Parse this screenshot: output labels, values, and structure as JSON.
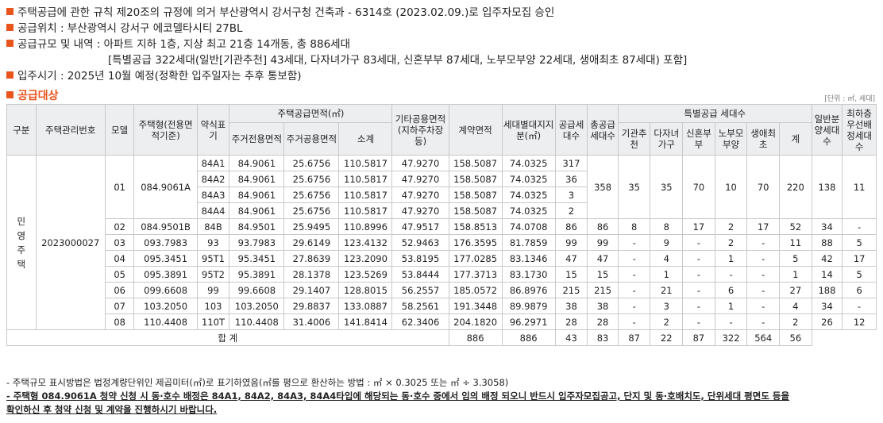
{
  "info": {
    "approval": "주택공급에 관한 규칙 제20조의 규정에 의거 부산광역시 강서구청 건축과 - 6314호 (2023.02.09.)로 입주자모집 승인",
    "location": "공급위치 : 부산광역시 강서구 에코델타시티 27BL",
    "scale": "공급규모 및 내역 : 아파트 지하 1층, 지상 최고 21층 14개동, 총 886세대",
    "scale_detail": "[특별공급 322세대(일반[기관추천] 43세대, 다자녀가구 83세대, 신혼부부 87세대, 노부모부양 22세대, 생애최초 87세대) 포함]",
    "move_in": "입주시기 : 2025년 10월 예정(정확한 입주일자는 추후 통보함)"
  },
  "section_title": "공급대상",
  "unit_note": "[단위 : ㎡, 세대]",
  "headers": {
    "gubun": "구분",
    "manage_no": "주택관리번호",
    "model": "모델",
    "housing_type": "주택형(전용면적기준)",
    "abbr": "약식표기",
    "supply_area": "주택공급면적(㎡)",
    "exclusive": "주거전용면적",
    "common": "주거공용면적",
    "subtotal": "소계",
    "other_common": "기타공용면적(지하주차장등)",
    "contract_area": "계약면적",
    "land": "세대별대지지분(㎡)",
    "supply_units": "공급세대수",
    "total_units": "총공급세대수",
    "special": "특별공급 세대수",
    "org": "기관추천",
    "multi_child": "다자녀가구",
    "newlywed": "신혼부부",
    "elderly": "노부모부양",
    "first_time": "생애최초",
    "sum": "계",
    "general": "일반분양세대수",
    "priority": "최하층우선배정세대수"
  },
  "gubun_value": [
    "민",
    "영",
    "주",
    "택"
  ],
  "manage_no_value": "2023000027",
  "group01": {
    "model": "01",
    "housing_type": "084.9061A",
    "total": "358",
    "org": "35",
    "multi_child": "35",
    "newlywed": "70",
    "elderly": "10",
    "first_time": "70",
    "sum": "220",
    "general": "138",
    "priority": "11",
    "subs": [
      {
        "abbr": "84A1",
        "exclusive": "84.9061",
        "common": "25.6756",
        "subtotal": "110.5817",
        "other": "47.9270",
        "contract": "158.5087",
        "land": "74.0325",
        "supply": "317"
      },
      {
        "abbr": "84A2",
        "exclusive": "84.9061",
        "common": "25.6756",
        "subtotal": "110.5817",
        "other": "47.9270",
        "contract": "158.5087",
        "land": "74.0325",
        "supply": "36"
      },
      {
        "abbr": "84A3",
        "exclusive": "84.9061",
        "common": "25.6756",
        "subtotal": "110.5817",
        "other": "47.9270",
        "contract": "158.5087",
        "land": "74.0325",
        "supply": "3"
      },
      {
        "abbr": "84A4",
        "exclusive": "84.9061",
        "common": "25.6756",
        "subtotal": "110.5817",
        "other": "47.9270",
        "contract": "158.5087",
        "land": "74.0325",
        "supply": "2"
      }
    ]
  },
  "rows": [
    {
      "model": "02",
      "type": "084.9501B",
      "abbr": "84B",
      "exclusive": "84.9501",
      "common": "25.9495",
      "subtotal": "110.8996",
      "other": "47.9517",
      "contract": "158.8513",
      "land": "74.0708",
      "supply": "86",
      "total": "86",
      "org": "8",
      "multi": "8",
      "newly": "17",
      "elder": "2",
      "first": "17",
      "sum": "52",
      "general": "34",
      "priority": "-"
    },
    {
      "model": "03",
      "type": "093.7983",
      "abbr": "93",
      "exclusive": "93.7983",
      "common": "29.6149",
      "subtotal": "123.4132",
      "other": "52.9463",
      "contract": "176.3595",
      "land": "81.7859",
      "supply": "99",
      "total": "99",
      "org": "-",
      "multi": "9",
      "newly": "-",
      "elder": "2",
      "first": "-",
      "sum": "11",
      "general": "88",
      "priority": "5"
    },
    {
      "model": "04",
      "type": "095.3451",
      "abbr": "95T1",
      "exclusive": "95.3451",
      "common": "27.8639",
      "subtotal": "123.2090",
      "other": "53.8195",
      "contract": "177.0285",
      "land": "83.1346",
      "supply": "47",
      "total": "47",
      "org": "-",
      "multi": "4",
      "newly": "-",
      "elder": "1",
      "first": "-",
      "sum": "5",
      "general": "42",
      "priority": "17"
    },
    {
      "model": "05",
      "type": "095.3891",
      "abbr": "95T2",
      "exclusive": "95.3891",
      "common": "28.1378",
      "subtotal": "123.5269",
      "other": "53.8444",
      "contract": "177.3713",
      "land": "83.1730",
      "supply": "15",
      "total": "15",
      "org": "-",
      "multi": "1",
      "newly": "-",
      "elder": "-",
      "first": "-",
      "sum": "1",
      "general": "14",
      "priority": "5"
    },
    {
      "model": "06",
      "type": "099.6608",
      "abbr": "99",
      "exclusive": "99.6608",
      "common": "29.1407",
      "subtotal": "128.8015",
      "other": "56.2557",
      "contract": "185.0572",
      "land": "86.8976",
      "supply": "215",
      "total": "215",
      "org": "-",
      "multi": "21",
      "newly": "-",
      "elder": "6",
      "first": "-",
      "sum": "27",
      "general": "188",
      "priority": "6"
    },
    {
      "model": "07",
      "type": "103.2050",
      "abbr": "103",
      "exclusive": "103.2050",
      "common": "29.8837",
      "subtotal": "133.0887",
      "other": "58.2561",
      "contract": "191.3448",
      "land": "89.9879",
      "supply": "38",
      "total": "38",
      "org": "-",
      "multi": "3",
      "newly": "-",
      "elder": "1",
      "first": "-",
      "sum": "4",
      "general": "34",
      "priority": "-"
    },
    {
      "model": "08",
      "type": "110.4408",
      "abbr": "110T",
      "exclusive": "110.4408",
      "common": "31.4006",
      "subtotal": "141.8414",
      "other": "62.3406",
      "contract": "204.1820",
      "land": "96.2971",
      "supply": "28",
      "total": "28",
      "org": "-",
      "multi": "2",
      "newly": "-",
      "elder": "-",
      "first": "-",
      "sum": "2",
      "general": "26",
      "priority": "12"
    }
  ],
  "totals": {
    "label": "합 계",
    "supply": "886",
    "total": "886",
    "org": "43",
    "multi": "83",
    "newly": "87",
    "elder": "22",
    "first": "87",
    "sum": "322",
    "general": "564",
    "priority": "56"
  },
  "notes": {
    "note1": "- 주택규모 표시방법은 법정계량단위인 제곱미터(㎡)로 표기하였음(㎡를 평으로 환산하는 방법 : ㎡ × 0.3025 또는 ㎡ ÷ 3.3058)",
    "note2": "- 주택형 084.9061A 청약 신청 시 동·호수 배정은 84A1, 84A2, 84A3, 84A4타입에 해당되는 동·호수 중에서 임의 배정 되오니 반드시 입주자모집공고, 단지 및 동·호배치도, 단위세대 평면도 등을",
    "note3": "확인하신 후 청약 신청 및 계약을 진행하시기 바랍니다."
  },
  "colors": {
    "accent": "#e8541c",
    "header_bg": "#eceeef",
    "border": "#c9c9c9"
  }
}
